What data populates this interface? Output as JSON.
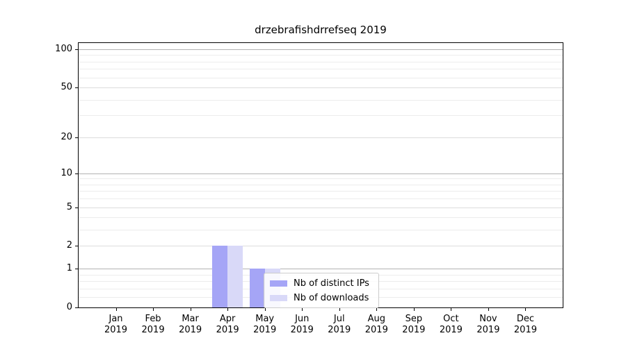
{
  "title": "drzebrafishdrrefseq 2019",
  "chart_data": {
    "type": "bar",
    "title": "drzebrafishdrrefseq 2019",
    "x_ticks": [
      {
        "month": "Jan",
        "year": "2019"
      },
      {
        "month": "Feb",
        "year": "2019"
      },
      {
        "month": "Mar",
        "year": "2019"
      },
      {
        "month": "Apr",
        "year": "2019"
      },
      {
        "month": "May",
        "year": "2019"
      },
      {
        "month": "Jun",
        "year": "2019"
      },
      {
        "month": "Jul",
        "year": "2019"
      },
      {
        "month": "Aug",
        "year": "2019"
      },
      {
        "month": "Sep",
        "year": "2019"
      },
      {
        "month": "Oct",
        "year": "2019"
      },
      {
        "month": "Nov",
        "year": "2019"
      },
      {
        "month": "Dec",
        "year": "2019"
      }
    ],
    "categories": [
      "Jan 2019",
      "Feb 2019",
      "Mar 2019",
      "Apr 2019",
      "May 2019",
      "Jun 2019",
      "Jul 2019",
      "Aug 2019",
      "Sep 2019",
      "Oct 2019",
      "Nov 2019",
      "Dec 2019"
    ],
    "series": [
      {
        "name": "Nb of distinct IPs",
        "color": "#a5a5f6",
        "values": [
          0,
          0,
          0,
          2,
          1,
          0,
          0,
          0,
          0,
          0,
          0,
          0
        ]
      },
      {
        "name": "Nb of downloads",
        "color": "#d9d9f8",
        "values": [
          0,
          0,
          0,
          2,
          1,
          0,
          0,
          0,
          0,
          0,
          0,
          0
        ]
      }
    ],
    "yscale": "log1p",
    "ylim": [
      0,
      112
    ],
    "y_tick_values": [
      0,
      1,
      2,
      5,
      10,
      20,
      50,
      100
    ],
    "y_major_gridlines": [
      1,
      10,
      100
    ],
    "y_sub_gridlines": [
      2,
      5,
      20,
      50
    ],
    "y_minor_gridlines": [
      0.2,
      0.4,
      0.6,
      0.8,
      3,
      4,
      6,
      7,
      8,
      9,
      30,
      40,
      60,
      70,
      80,
      90
    ],
    "grid_colors": {
      "major": "#b2b2b2",
      "sub": "#dcdcdc",
      "minor": "#ececec"
    },
    "axis_color": "#000000",
    "legend": {
      "position": "lower-center"
    },
    "xlabel": "",
    "ylabel": ""
  }
}
